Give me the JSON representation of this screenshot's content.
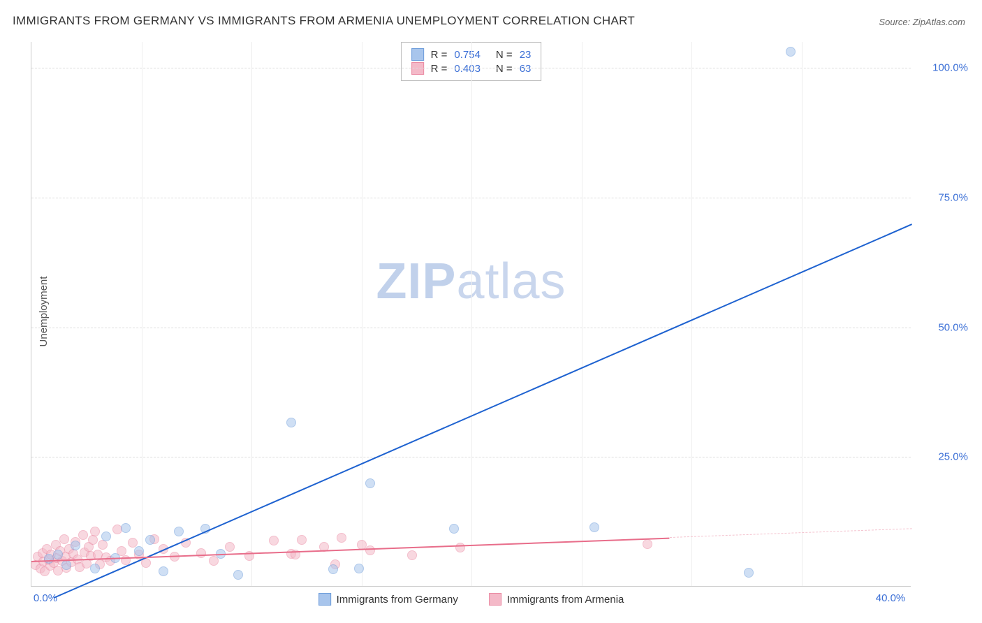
{
  "title": "IMMIGRANTS FROM GERMANY VS IMMIGRANTS FROM ARMENIA UNEMPLOYMENT CORRELATION CHART",
  "source": "Source: ZipAtlas.com",
  "ylabel": "Unemployment",
  "watermark_a": "ZIP",
  "watermark_b": "atlas",
  "chart": {
    "type": "scatter-with-regression",
    "background_color": "#ffffff",
    "grid_color": "#dddddd",
    "axis_color": "#cccccc",
    "axis_label_color": "#3b6fd6",
    "ylabel_color": "#555555",
    "title_color": "#333333",
    "xlim": [
      0,
      40
    ],
    "ylim": [
      0,
      105
    ],
    "xtick_step": 5,
    "xtick_labels": {
      "0": "0.0%",
      "40": "40.0%"
    },
    "ytick_positions": [
      25,
      50,
      75,
      100
    ],
    "ytick_labels": {
      "25": "25.0%",
      "50": "50.0%",
      "75": "75.0%",
      "100": "100.0%"
    },
    "label_fontsize": 15,
    "title_fontsize": 17,
    "point_radius": 7,
    "point_opacity": 0.55,
    "line_width": 2,
    "series": [
      {
        "name": "Immigrants from Germany",
        "color_fill": "#a8c5ec",
        "color_stroke": "#6f9edb",
        "color_line": "#1e62d0",
        "R": "0.754",
        "N": "23",
        "trend": {
          "x1": 1.0,
          "y1": -2.0,
          "x2": 40.0,
          "y2": 70.0
        },
        "points": [
          {
            "x": 0.8,
            "y": 5.2
          },
          {
            "x": 1.2,
            "y": 6.0
          },
          {
            "x": 1.6,
            "y": 4.1
          },
          {
            "x": 2.0,
            "y": 7.8
          },
          {
            "x": 2.9,
            "y": 3.4
          },
          {
            "x": 3.4,
            "y": 9.5
          },
          {
            "x": 3.8,
            "y": 5.4
          },
          {
            "x": 4.3,
            "y": 11.2
          },
          {
            "x": 4.9,
            "y": 6.7
          },
          {
            "x": 5.4,
            "y": 8.9
          },
          {
            "x": 6.0,
            "y": 2.8
          },
          {
            "x": 6.7,
            "y": 10.5
          },
          {
            "x": 7.9,
            "y": 11.0
          },
          {
            "x": 8.6,
            "y": 6.2
          },
          {
            "x": 9.4,
            "y": 2.2
          },
          {
            "x": 11.8,
            "y": 31.5
          },
          {
            "x": 13.7,
            "y": 3.2
          },
          {
            "x": 15.4,
            "y": 19.8
          },
          {
            "x": 14.9,
            "y": 3.4
          },
          {
            "x": 19.2,
            "y": 11.0
          },
          {
            "x": 25.6,
            "y": 11.3
          },
          {
            "x": 32.6,
            "y": 2.5
          },
          {
            "x": 34.5,
            "y": 103.0
          }
        ]
      },
      {
        "name": "Immigrants from Armenia",
        "color_fill": "#f4b9c8",
        "color_stroke": "#ea8aa3",
        "color_line": "#e86d8a",
        "color_line_dashed": "#f4c3cf",
        "R": "0.403",
        "N": "63",
        "trend": {
          "x1": 0.0,
          "y1": 5.0,
          "x2": 29.0,
          "y2": 9.5
        },
        "trend_dashed": {
          "x1": 29.0,
          "y1": 9.5,
          "x2": 40.0,
          "y2": 11.2
        },
        "points": [
          {
            "x": 0.2,
            "y": 4.0
          },
          {
            "x": 0.3,
            "y": 5.6
          },
          {
            "x": 0.4,
            "y": 3.4
          },
          {
            "x": 0.5,
            "y": 6.3
          },
          {
            "x": 0.55,
            "y": 4.7
          },
          {
            "x": 0.6,
            "y": 2.8
          },
          {
            "x": 0.7,
            "y": 7.2
          },
          {
            "x": 0.8,
            "y": 5.0
          },
          {
            "x": 0.85,
            "y": 3.9
          },
          {
            "x": 0.9,
            "y": 6.0
          },
          {
            "x": 1.0,
            "y": 4.4
          },
          {
            "x": 1.1,
            "y": 8.0
          },
          {
            "x": 1.15,
            "y": 5.4
          },
          {
            "x": 1.2,
            "y": 3.0
          },
          {
            "x": 1.3,
            "y": 6.8
          },
          {
            "x": 1.4,
            "y": 4.9
          },
          {
            "x": 1.5,
            "y": 9.0
          },
          {
            "x": 1.55,
            "y": 5.7
          },
          {
            "x": 1.6,
            "y": 3.5
          },
          {
            "x": 1.7,
            "y": 7.1
          },
          {
            "x": 1.8,
            "y": 4.6
          },
          {
            "x": 1.9,
            "y": 6.2
          },
          {
            "x": 2.0,
            "y": 8.5
          },
          {
            "x": 2.1,
            "y": 5.1
          },
          {
            "x": 2.2,
            "y": 3.7
          },
          {
            "x": 2.35,
            "y": 9.8
          },
          {
            "x": 2.4,
            "y": 6.5
          },
          {
            "x": 2.5,
            "y": 4.3
          },
          {
            "x": 2.6,
            "y": 7.6
          },
          {
            "x": 2.7,
            "y": 5.8
          },
          {
            "x": 2.8,
            "y": 8.9
          },
          {
            "x": 2.9,
            "y": 10.5
          },
          {
            "x": 3.0,
            "y": 6.0
          },
          {
            "x": 3.1,
            "y": 4.2
          },
          {
            "x": 3.25,
            "y": 7.9
          },
          {
            "x": 3.4,
            "y": 5.5
          },
          {
            "x": 3.6,
            "y": 4.8
          },
          {
            "x": 3.9,
            "y": 10.9
          },
          {
            "x": 4.1,
            "y": 6.7
          },
          {
            "x": 4.3,
            "y": 5.0
          },
          {
            "x": 4.6,
            "y": 8.3
          },
          {
            "x": 4.9,
            "y": 6.1
          },
          {
            "x": 5.2,
            "y": 4.5
          },
          {
            "x": 5.6,
            "y": 9.0
          },
          {
            "x": 6.0,
            "y": 7.2
          },
          {
            "x": 6.5,
            "y": 5.6
          },
          {
            "x": 7.0,
            "y": 8.4
          },
          {
            "x": 7.7,
            "y": 6.3
          },
          {
            "x": 8.3,
            "y": 4.9
          },
          {
            "x": 9.0,
            "y": 7.5
          },
          {
            "x": 9.9,
            "y": 5.8
          },
          {
            "x": 11.0,
            "y": 8.7
          },
          {
            "x": 11.8,
            "y": 6.2
          },
          {
            "x": 12.0,
            "y": 6.1
          },
          {
            "x": 12.3,
            "y": 8.9
          },
          {
            "x": 13.3,
            "y": 7.5
          },
          {
            "x": 13.8,
            "y": 4.2
          },
          {
            "x": 14.1,
            "y": 9.3
          },
          {
            "x": 15.0,
            "y": 7.9
          },
          {
            "x": 15.4,
            "y": 6.9
          },
          {
            "x": 17.3,
            "y": 5.9
          },
          {
            "x": 19.5,
            "y": 7.4
          },
          {
            "x": 28.0,
            "y": 8.1
          }
        ]
      }
    ],
    "legend_top": {
      "border_color": "#bbbbbb",
      "text_color": "#333333",
      "value_color": "#3b6fd6"
    },
    "legend_bottom": {
      "germany_label": "Immigrants from Germany",
      "armenia_label": "Immigrants from Armenia"
    }
  }
}
